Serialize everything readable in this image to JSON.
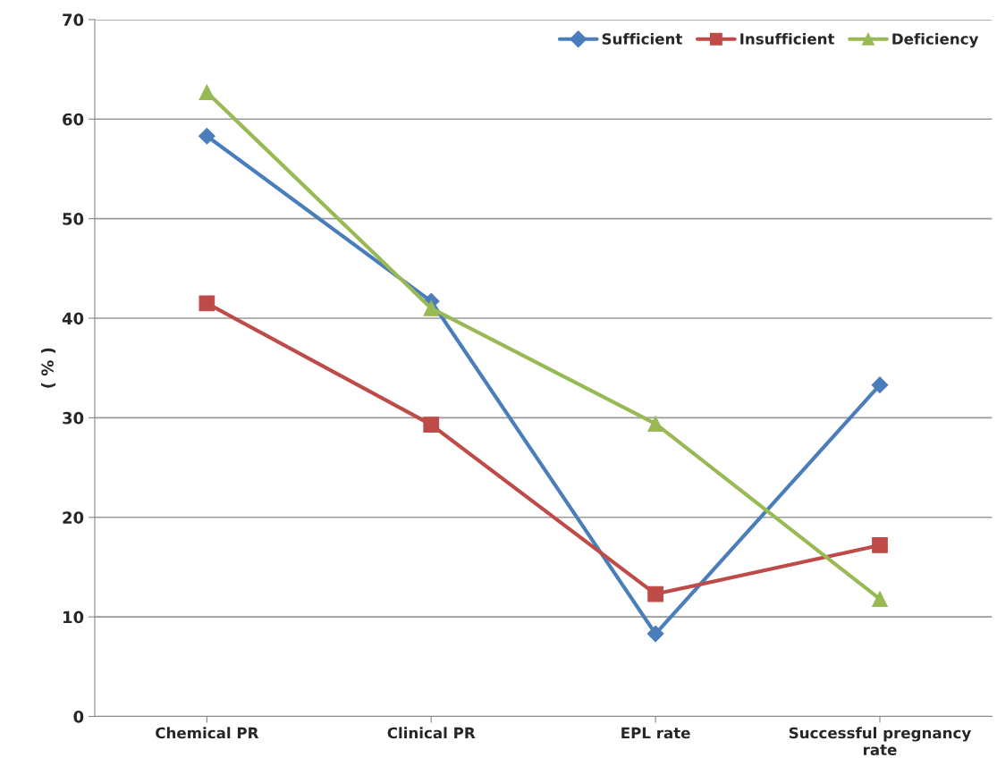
{
  "chart_data": {
    "type": "line",
    "ylabel": "( % )",
    "categories": [
      "Chemical PR",
      "Clinical PR",
      "EPL rate",
      "Successful pregnancy\nrate"
    ],
    "series": [
      {
        "name": "Sufficient",
        "color": "#4a7ebb",
        "marker": "diamond",
        "values": [
          58.3,
          41.7,
          8.3,
          33.3
        ]
      },
      {
        "name": "Insufficient",
        "color": "#be4b48",
        "marker": "square",
        "values": [
          41.5,
          29.3,
          12.3,
          17.2
        ]
      },
      {
        "name": "Deficiency",
        "color": "#98b954",
        "marker": "triangle",
        "values": [
          62.7,
          41.0,
          29.4,
          11.8
        ]
      }
    ],
    "ylim": [
      0,
      70
    ],
    "yticks": [
      0,
      10,
      20,
      30,
      40,
      50,
      60,
      70
    ],
    "grid": "y",
    "legend": "top right",
    "line_style": "solid"
  }
}
